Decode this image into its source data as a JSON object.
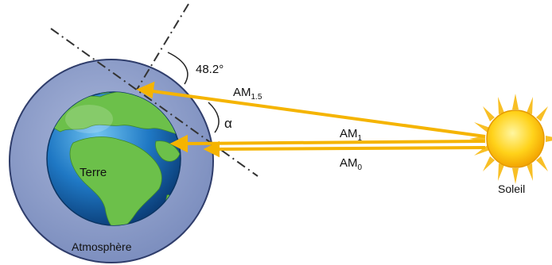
{
  "labels": {
    "angle_value": "48.2°",
    "angle_symbol": "α",
    "am15_main": "AM",
    "am15_sub": "1.5",
    "am1_main": "AM",
    "am1_sub": "1",
    "am0_main": "AM",
    "am0_sub": "0",
    "earth": "Terre",
    "atmosphere": "Atmosphère",
    "sun": "Soleil"
  },
  "colors": {
    "atmosphere_fill": "#8799c4",
    "atmosphere_stroke": "#2f3d6b",
    "ocean": "#1f6fb5",
    "land": "#6cc04a",
    "ray": "#f5b400",
    "sun_core": "#ffd21a",
    "sun_rays": "#f7b500",
    "dash_line": "#333333"
  }
}
